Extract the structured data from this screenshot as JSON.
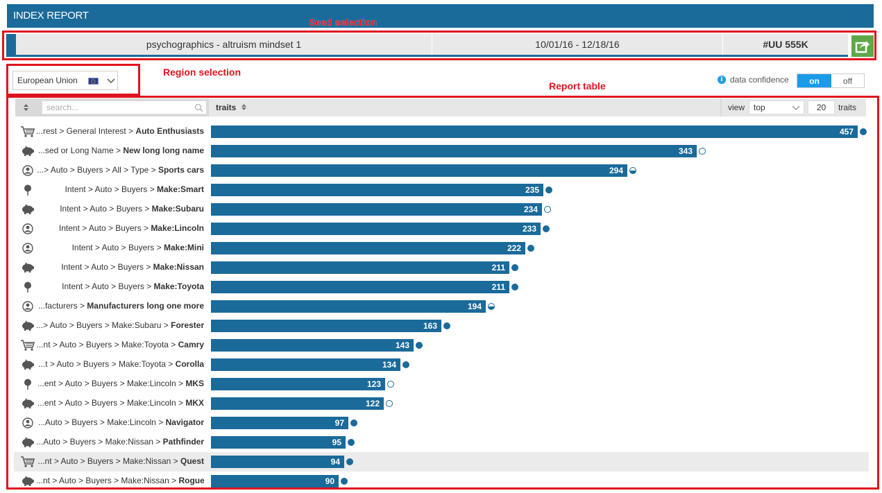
{
  "header": {
    "title": "INDEX REPORT"
  },
  "annotations": {
    "seed": "Seed selection",
    "region": "Region selection",
    "table": "Report table"
  },
  "seed": {
    "name": "psychographics - altruism mindset 1",
    "dates": "10/01/16 - 12/18/16",
    "uu": "#UU 555K",
    "export_icon": "export-icon"
  },
  "region": {
    "selected": "European Union",
    "flag": "eu-flag-icon"
  },
  "confidence": {
    "label": "data confidence",
    "on": "on",
    "off": "off",
    "active": "on"
  },
  "table": {
    "search_placeholder": "search...",
    "traits_header": "traits",
    "view_label": "view",
    "view_selected": "top",
    "view_count": "20",
    "view_suffix": "traits",
    "max_value": 457,
    "rows": [
      {
        "icon": "cart",
        "prefix": "...rest > General Interest > ",
        "name": "Auto Enthusiasts",
        "value": 457,
        "conf": "full"
      },
      {
        "icon": "piggy",
        "prefix": "...sed or Long Name > ",
        "name": "New long long name",
        "value": 343,
        "conf": "empty"
      },
      {
        "icon": "person",
        "prefix": "...> Auto > Buyers > All > Type > ",
        "name": "Sports cars",
        "value": 294,
        "conf": "half"
      },
      {
        "icon": "pin",
        "prefix": "Intent > Auto > Buyers > ",
        "name": "Make:Smart",
        "value": 235,
        "conf": "full"
      },
      {
        "icon": "piggy",
        "prefix": "Intent > Auto > Buyers > ",
        "name": "Make:Subaru",
        "value": 234,
        "conf": "empty"
      },
      {
        "icon": "person",
        "prefix": "Intent > Auto > Buyers > ",
        "name": "Make:Lincoln",
        "value": 233,
        "conf": "full"
      },
      {
        "icon": "person",
        "prefix": "Intent > Auto > Buyers > ",
        "name": "Make:Mini",
        "value": 222,
        "conf": "full"
      },
      {
        "icon": "piggy",
        "prefix": "Intent > Auto > Buyers > ",
        "name": "Make:Nissan",
        "value": 211,
        "conf": "full"
      },
      {
        "icon": "pin",
        "prefix": "Intent > Auto > Buyers > ",
        "name": "Make:Toyota",
        "value": 211,
        "conf": "full"
      },
      {
        "icon": "person",
        "prefix": "...facturers > ",
        "name": "Manufacturers long one more",
        "value": 194,
        "conf": "half"
      },
      {
        "icon": "piggy",
        "prefix": "...> Auto > Buyers > Make:Subaru > ",
        "name": "Forester",
        "value": 163,
        "conf": "full"
      },
      {
        "icon": "cart",
        "prefix": "...nt > Auto > Buyers > Make:Toyota > ",
        "name": "Camry",
        "value": 143,
        "conf": "full"
      },
      {
        "icon": "piggy",
        "prefix": "...t > Auto > Buyers > Make:Toyota > ",
        "name": "Corolla",
        "value": 134,
        "conf": "full"
      },
      {
        "icon": "pin",
        "prefix": "...ent > Auto > Buyers > Make:Lincoln > ",
        "name": "MKS",
        "value": 123,
        "conf": "empty"
      },
      {
        "icon": "piggy",
        "prefix": "...ent > Auto > Buyers > Make:Lincoln > ",
        "name": "MKX",
        "value": 122,
        "conf": "empty"
      },
      {
        "icon": "person",
        "prefix": "...Auto > Buyers > Make:Lincoln > ",
        "name": "Navigator",
        "value": 97,
        "conf": "full"
      },
      {
        "icon": "piggy",
        "prefix": "...Auto > Buyers > Make:Nissan > ",
        "name": "Pathfinder",
        "value": 95,
        "conf": "full"
      },
      {
        "icon": "cart",
        "prefix": "...nt > Auto > Buyers > Make:Nissan > ",
        "name": "Quest",
        "value": 94,
        "conf": "full",
        "highlight": true
      },
      {
        "icon": "piggy",
        "prefix": "...nt > Auto > Buyers > Make:Nissan > ",
        "name": "Rogue",
        "value": 90,
        "conf": "full"
      }
    ]
  },
  "colors": {
    "brand": "#1a6a9a",
    "accent": "#1c9be8",
    "export": "#5fa84a",
    "annotation": "#e0141e"
  }
}
